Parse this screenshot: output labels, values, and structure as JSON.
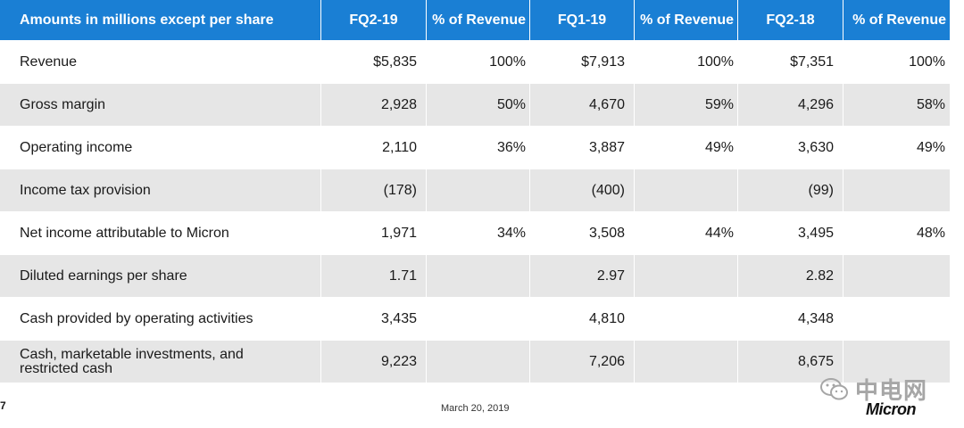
{
  "header": {
    "label": "Amounts in millions except per share",
    "col1": "FQ2-19",
    "col2": "% of Revenue",
    "col3": "FQ1-19",
    "col4": "% of Revenue",
    "col5": "FQ2-18",
    "col6": "% of Revenue"
  },
  "rows": [
    {
      "label": "Revenue",
      "fq219": "$5,835",
      "pct1": "100%",
      "fq119": "$7,913",
      "pct2": "100%",
      "fq218": "$7,351",
      "pct3": "100%"
    },
    {
      "label": "Gross margin",
      "fq219": "2,928",
      "pct1": "50%",
      "fq119": "4,670",
      "pct2": "59%",
      "fq218": "4,296",
      "pct3": "58%"
    },
    {
      "label": "Operating income",
      "fq219": "2,110",
      "pct1": "36%",
      "fq119": "3,887",
      "pct2": "49%",
      "fq218": "3,630",
      "pct3": "49%"
    },
    {
      "label": "Income tax provision",
      "fq219": "(178)",
      "pct1": "",
      "fq119": "(400)",
      "pct2": "",
      "fq218": "(99)",
      "pct3": ""
    },
    {
      "label": "Net income attributable to Micron",
      "fq219": "1,971",
      "pct1": "34%",
      "fq119": "3,508",
      "pct2": "44%",
      "fq218": "3,495",
      "pct3": "48%"
    },
    {
      "label": "Diluted earnings per share",
      "fq219": "1.71",
      "pct1": "",
      "fq119": "2.97",
      "pct2": "",
      "fq218": "2.82",
      "pct3": ""
    },
    {
      "label": "Cash provided by operating activities",
      "fq219": "3,435",
      "pct1": "",
      "fq119": "4,810",
      "pct2": "",
      "fq218": "4,348",
      "pct3": ""
    },
    {
      "label_line1": "Cash, marketable investments, and",
      "label_line2": "restricted cash",
      "fq219": "9,223",
      "pct1": "",
      "fq119": "7,206",
      "pct2": "",
      "fq218": "8,675",
      "pct3": ""
    }
  ],
  "footer": {
    "page_number": "7",
    "date": "March 20, 2019",
    "watermark_text": "中电网",
    "logo_text": "Micron"
  },
  "colors": {
    "header_bg": "#1a7fd4",
    "alt_row_bg": "#e6e6e6"
  }
}
